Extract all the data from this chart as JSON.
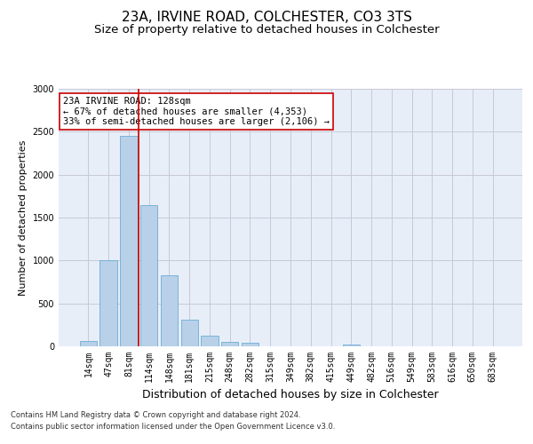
{
  "title": "23A, IRVINE ROAD, COLCHESTER, CO3 3TS",
  "subtitle": "Size of property relative to detached houses in Colchester",
  "xlabel": "Distribution of detached houses by size in Colchester",
  "ylabel": "Number of detached properties",
  "categories": [
    "14sqm",
    "47sqm",
    "81sqm",
    "114sqm",
    "148sqm",
    "181sqm",
    "215sqm",
    "248sqm",
    "282sqm",
    "315sqm",
    "349sqm",
    "382sqm",
    "415sqm",
    "449sqm",
    "482sqm",
    "516sqm",
    "549sqm",
    "583sqm",
    "616sqm",
    "650sqm",
    "683sqm"
  ],
  "values": [
    60,
    1000,
    2450,
    1650,
    830,
    310,
    125,
    55,
    45,
    0,
    0,
    0,
    0,
    25,
    0,
    0,
    0,
    0,
    0,
    0,
    0
  ],
  "bar_color": "#b8d0e8",
  "bar_edge_color": "#6baed6",
  "vline_x": 2.5,
  "vline_color": "#cc0000",
  "annotation_line1": "23A IRVINE ROAD: 128sqm",
  "annotation_line2": "← 67% of detached houses are smaller (4,353)",
  "annotation_line3": "33% of semi-detached houses are larger (2,106) →",
  "annotation_box_color": "#ffffff",
  "annotation_box_edge": "#cc0000",
  "ylim": [
    0,
    3000
  ],
  "yticks": [
    0,
    500,
    1000,
    1500,
    2000,
    2500,
    3000
  ],
  "grid_color": "#c8c8d8",
  "bg_color": "#e8eef8",
  "footer1": "Contains HM Land Registry data © Crown copyright and database right 2024.",
  "footer2": "Contains public sector information licensed under the Open Government Licence v3.0.",
  "title_fontsize": 11,
  "subtitle_fontsize": 9.5,
  "xlabel_fontsize": 9,
  "ylabel_fontsize": 8,
  "tick_fontsize": 7,
  "annotation_fontsize": 7.5,
  "footer_fontsize": 6
}
